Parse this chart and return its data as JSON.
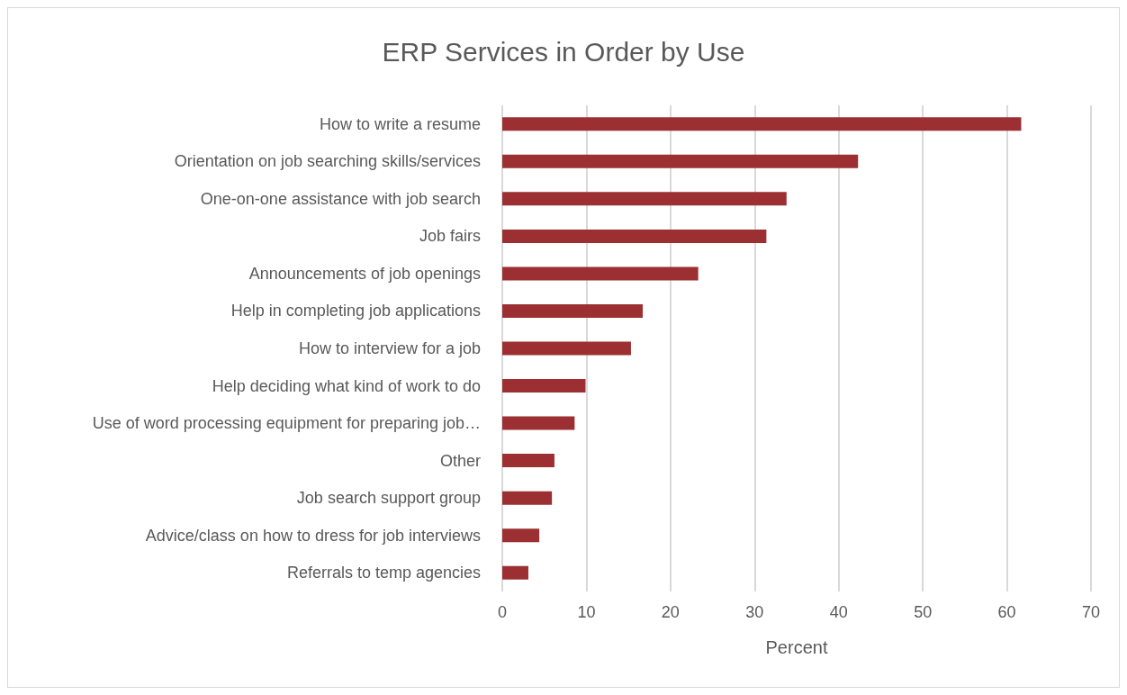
{
  "chart_data": {
    "type": "bar",
    "orientation": "horizontal",
    "title": "ERP Services in Order by Use",
    "xlabel": "Percent",
    "categories": [
      "How to write a resume",
      "Orientation on job searching skills/services",
      "One-on-one assistance with job search",
      "Job fairs",
      "Announcements of job openings",
      "Help in completing job applications",
      "How to interview for a job",
      "Help deciding what kind of work to do",
      "Use of word processing equipment for preparing job…",
      "Other",
      "Job search support group",
      "Advice/class on how to dress for job interviews",
      "Referrals to temp agencies"
    ],
    "values": [
      61.7,
      42.3,
      33.8,
      31.4,
      23.3,
      16.7,
      15.3,
      9.9,
      8.6,
      6.2,
      5.9,
      4.4,
      3.1
    ],
    "color": "#9b2f31",
    "xlim": [
      0,
      70
    ],
    "xticks": [
      0,
      10,
      20,
      30,
      40,
      50,
      60,
      70
    ],
    "grid": "x"
  }
}
